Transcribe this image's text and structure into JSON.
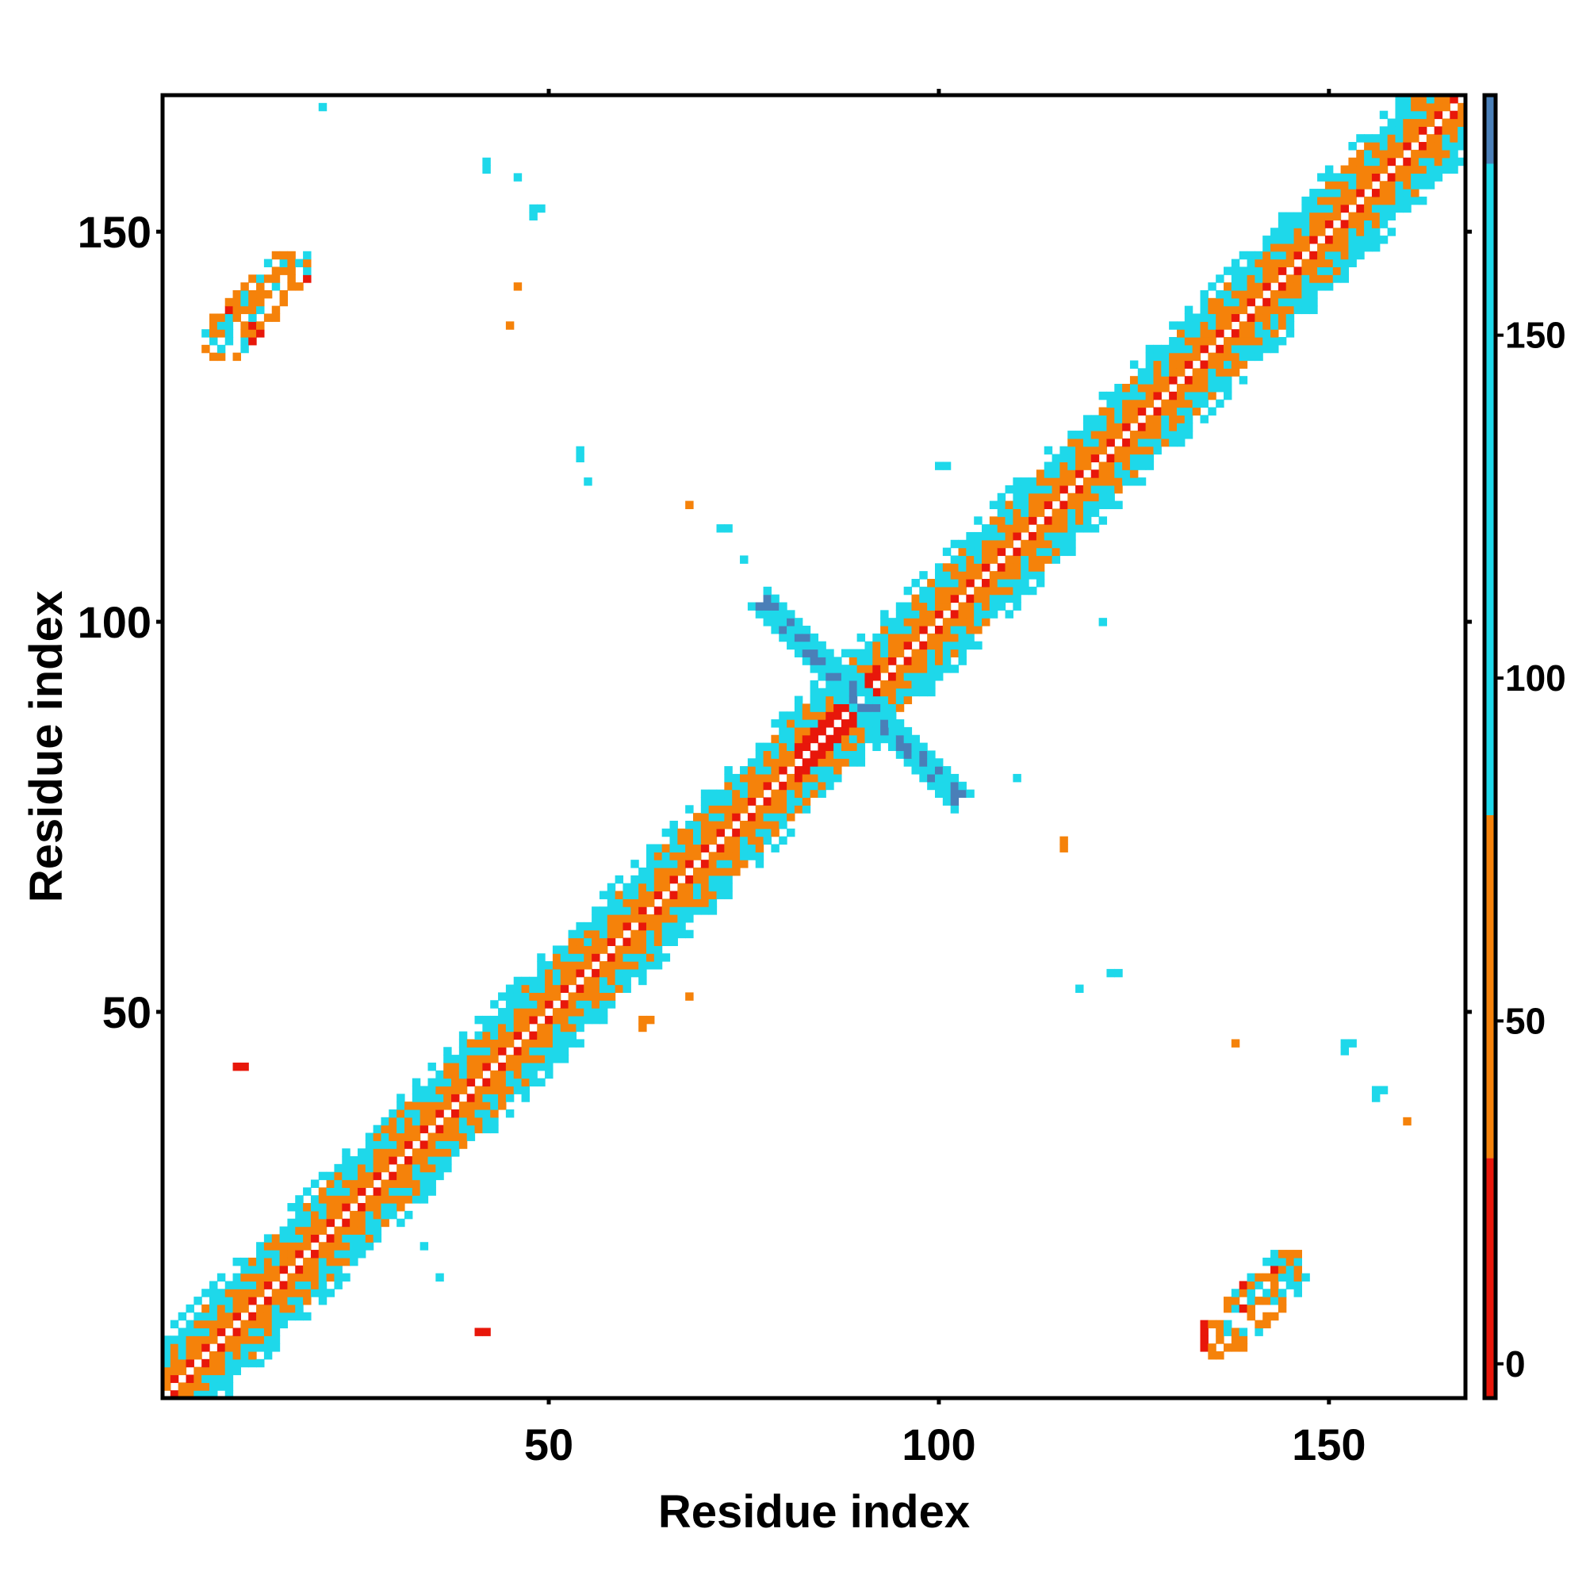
{
  "chart_data": {
    "type": "heatmap",
    "xlabel": "Residue index",
    "ylabel": "Residue index",
    "xlim": [
      1,
      167
    ],
    "ylim": [
      1,
      167
    ],
    "x_ticks": [
      50,
      100,
      150
    ],
    "y_ticks": [
      50,
      100,
      150
    ],
    "colorbar": {
      "ticks": [
        0,
        50,
        100,
        150
      ],
      "range": [
        -5,
        185
      ],
      "bands": [
        {
          "from": -5,
          "to": 30,
          "color": "#e8170a"
        },
        {
          "from": 30,
          "to": 80,
          "color": "#f5820a"
        },
        {
          "from": 80,
          "to": 175,
          "color": "#1ed8ea"
        },
        {
          "from": 175,
          "to": 185,
          "color": "#4a7fb8"
        }
      ]
    },
    "colors": {
      "red": "#e8170a",
      "orange": "#f5820a",
      "cyan": "#1ed8ea",
      "steel_blue": "#4a7fb8"
    },
    "grid": false,
    "structure": {
      "diagonal_band": [
        [
          1,
          167
        ]
      ],
      "antiparallel_sheet": {
        "center": [
          90,
          90
        ],
        "span": [
          80,
          101
        ],
        "value": 170
      },
      "contact_blocks": [
        {
          "x": [
            6,
            19
          ],
          "y": [
            134,
            147
          ],
          "mix": "orange-cyan"
        },
        {
          "x": [
            134,
            147
          ],
          "y": [
            6,
            19
          ],
          "mix": "orange-cyan"
        }
      ],
      "sparse_contacts": [
        {
          "x": 42,
          "y": 159,
          "value": 100
        },
        {
          "x": 46,
          "y": 157,
          "value": 150
        },
        {
          "x": 48,
          "y": 153,
          "value": 100
        },
        {
          "x": 46,
          "y": 143,
          "value": 60
        },
        {
          "x": 45,
          "y": 138,
          "value": 60
        },
        {
          "x": 54,
          "y": 122,
          "value": 150
        },
        {
          "x": 55,
          "y": 118,
          "value": 100
        },
        {
          "x": 68,
          "y": 115,
          "value": 60
        },
        {
          "x": 72,
          "y": 112,
          "value": 100
        },
        {
          "x": 75,
          "y": 108,
          "value": 150
        },
        {
          "x": 100,
          "y": 120,
          "value": 150
        },
        {
          "x": 121,
          "y": 100,
          "value": 150
        },
        {
          "x": 110,
          "y": 80,
          "value": 150
        },
        {
          "x": 116,
          "y": 72,
          "value": 60
        },
        {
          "x": 122,
          "y": 55,
          "value": 150
        },
        {
          "x": 118,
          "y": 53,
          "value": 100
        },
        {
          "x": 138,
          "y": 46,
          "value": 60
        },
        {
          "x": 152,
          "y": 46,
          "value": 100
        },
        {
          "x": 156,
          "y": 40,
          "value": 150
        },
        {
          "x": 160,
          "y": 36,
          "value": 60
        },
        {
          "x": 34,
          "y": 20,
          "value": 100
        },
        {
          "x": 36,
          "y": 16,
          "value": 100
        },
        {
          "x": 41,
          "y": 9,
          "value": 0
        },
        {
          "x": 10,
          "y": 43,
          "value": 0
        },
        {
          "x": 21,
          "y": 166,
          "value": 150
        },
        {
          "x": 62,
          "y": 49,
          "value": 60
        },
        {
          "x": 61,
          "y": 62,
          "value": 60
        },
        {
          "x": 68,
          "y": 52,
          "value": 60
        }
      ]
    }
  }
}
